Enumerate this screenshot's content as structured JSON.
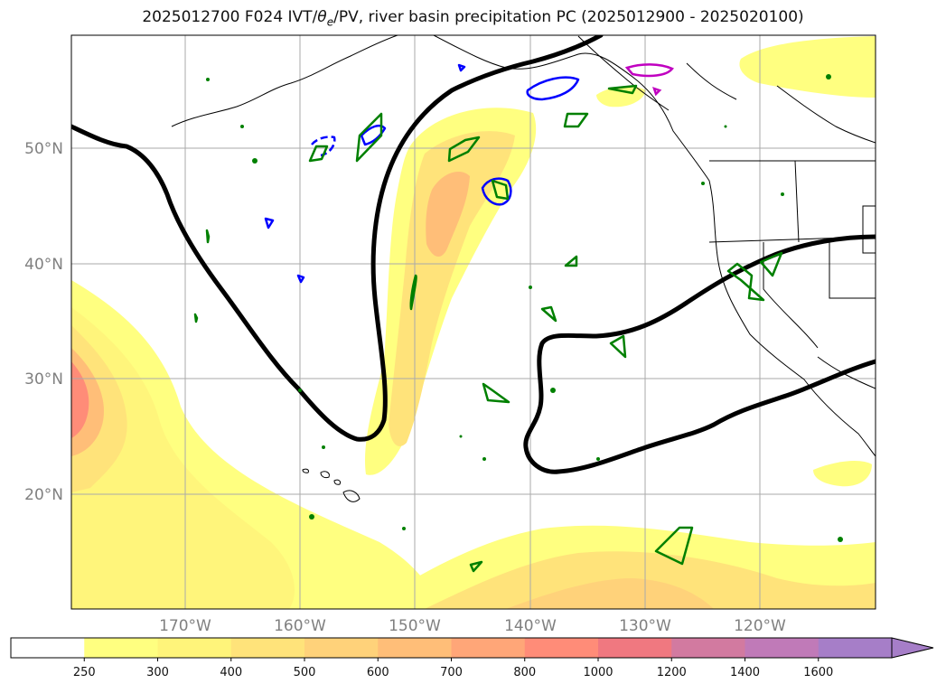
{
  "title": "2025012700 F024 IVT/θe/PV, river basin precipitation PC (2025012900 - 2025020100)",
  "map": {
    "lat_labels": [
      "50°N",
      "40°N",
      "30°N",
      "20°N"
    ],
    "lon_labels": [
      "170°W",
      "160°W",
      "150°W",
      "140°W",
      "130°W",
      "120°W"
    ],
    "grid": true
  },
  "colorbar": {
    "levels": [
      "250",
      "300",
      "400",
      "500",
      "600",
      "700",
      "800",
      "1000",
      "1200",
      "1400",
      "1600"
    ],
    "colors": [
      "#ffffff",
      "#ffff80",
      "#fff47a",
      "#ffe37a",
      "#ffd27a",
      "#ffbe78",
      "#ffa678",
      "#ff8c78",
      "#f07880",
      "#d27aa0",
      "#c07ab8",
      "#a67ec8"
    ],
    "extend": "max"
  },
  "colors": {
    "theta_contour": "#000000",
    "pv_blue": "#0000ff",
    "precip_green": "#008000",
    "magenta": "#c000c0"
  }
}
